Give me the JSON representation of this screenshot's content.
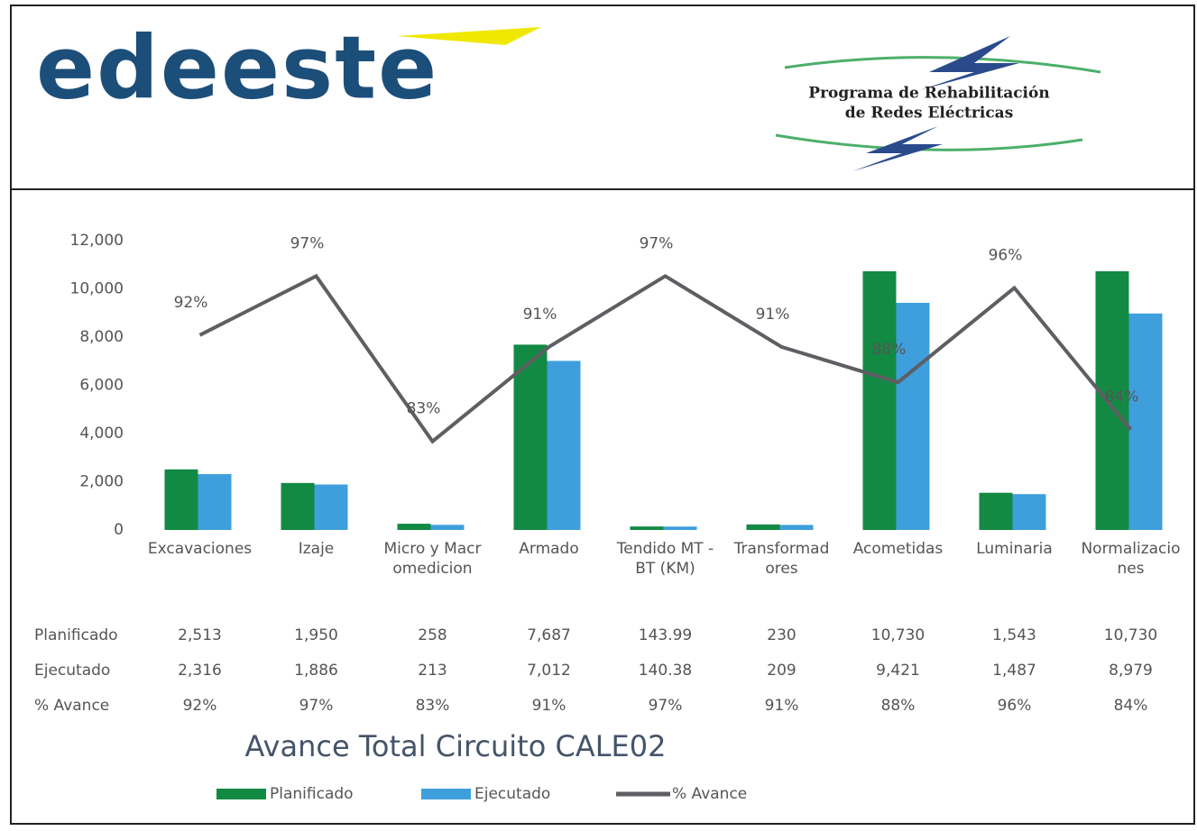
{
  "header": {
    "logo": "edeeste",
    "program": [
      "Programa de Rehabilitación",
      "de Redes Eléctricas"
    ]
  },
  "chart_data": {
    "type": "bar",
    "title": "Avance Total Circuito CALE02",
    "categories": [
      "Excavaciones",
      "Izaje",
      "Micro y Macromedicion",
      "Armado",
      "Tendido MT - BT (KM)",
      "Transformadores",
      "Acometidas",
      "Luminaria",
      "Normalizaciones"
    ],
    "series": [
      {
        "name": "Planificado",
        "color": "#138a43",
        "values": [
          2513,
          1950,
          258,
          7687,
          143.99,
          230,
          10730,
          1543,
          10730
        ],
        "value_labels": [
          "2,513",
          "1,950",
          "258",
          "7,687",
          "143.99",
          "230",
          "10,730",
          "1,543",
          "10,730"
        ]
      },
      {
        "name": "Ejecutado",
        "color": "#3e9fdc",
        "values": [
          2316,
          1886,
          213,
          7012,
          140.38,
          209,
          9421,
          1487,
          8979
        ],
        "value_labels": [
          "2,316",
          "1,886",
          "213",
          "7,012",
          "140.38",
          "209",
          "9,421",
          "1,487",
          "8,979"
        ]
      },
      {
        "name": "% Avance",
        "type": "line",
        "axis": "y2",
        "color": "#5e5e63",
        "values": [
          92,
          97,
          83,
          91,
          97,
          91,
          88,
          96,
          84
        ],
        "value_labels": [
          "92%",
          "97%",
          "83%",
          "91%",
          "97%",
          "91%",
          "88%",
          "96%",
          "84%"
        ]
      }
    ],
    "ylim": [
      0,
      12000
    ],
    "yticks": [
      {
        "value": 0,
        "label": "0"
      },
      {
        "value": 2000,
        "label": "2,000"
      },
      {
        "value": 4000,
        "label": "4,000"
      },
      {
        "value": 6000,
        "label": "6,000"
      },
      {
        "value": 8000,
        "label": "8,000"
      },
      {
        "value": 10000,
        "label": "10,000"
      },
      {
        "value": 12000,
        "label": "12,000"
      }
    ],
    "y2lim": [
      75.5,
      100
    ],
    "legend": "bottom"
  }
}
